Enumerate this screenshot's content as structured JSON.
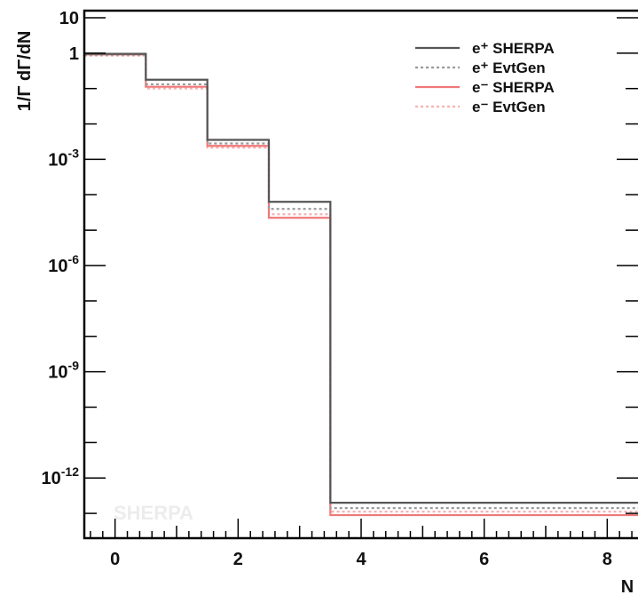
{
  "chart_data": {
    "type": "line",
    "step": true,
    "ylabel": "1/Γ dΓ/dN",
    "xlabel": "N",
    "watermark": "SHERPA",
    "yscale": "log",
    "xlim": [
      -0.5,
      8.5
    ],
    "ylim_log10": [
      -13.7,
      1.2
    ],
    "x_ticks": [
      {
        "value": 0,
        "label": "0"
      },
      {
        "value": 2,
        "label": "2"
      },
      {
        "value": 4,
        "label": "4"
      },
      {
        "value": 6,
        "label": "6"
      },
      {
        "value": 8,
        "label": "8"
      }
    ],
    "y_ticks": [
      {
        "log10": 1,
        "base": "10",
        "exp": ""
      },
      {
        "log10": 0,
        "base": "1",
        "exp": ""
      },
      {
        "log10": -3,
        "base": "10",
        "exp": "-3"
      },
      {
        "log10": -6,
        "base": "10",
        "exp": "-6"
      },
      {
        "log10": -9,
        "base": "10",
        "exp": "-9"
      },
      {
        "log10": -12,
        "base": "10",
        "exp": "-12"
      }
    ],
    "bin_edges": [
      -0.5,
      0.5,
      1.5,
      2.5,
      3.5,
      8.5
    ],
    "series": [
      {
        "name": "e⁺ SHERPA",
        "color": "#555555",
        "dash": "solid",
        "log10_values": [
          -0.02,
          -0.75,
          -2.45,
          -4.2,
          -12.7
        ]
      },
      {
        "name": "e⁺ EvtGen",
        "color": "#9a9a9a",
        "dash": "dotted",
        "log10_values": [
          -0.05,
          -0.88,
          -2.55,
          -4.4,
          -12.85
        ]
      },
      {
        "name": "e⁻ SHERPA",
        "color": "#f07878",
        "dash": "solid",
        "log10_values": [
          -0.04,
          -0.95,
          -2.62,
          -4.65,
          -13.05
        ]
      },
      {
        "name": "e⁻ EvtGen",
        "color": "#f7b0b0",
        "dash": "dotted",
        "log10_values": [
          -0.07,
          -1.0,
          -2.67,
          -4.55,
          -12.95
        ]
      }
    ],
    "legend_position": "top-right"
  }
}
